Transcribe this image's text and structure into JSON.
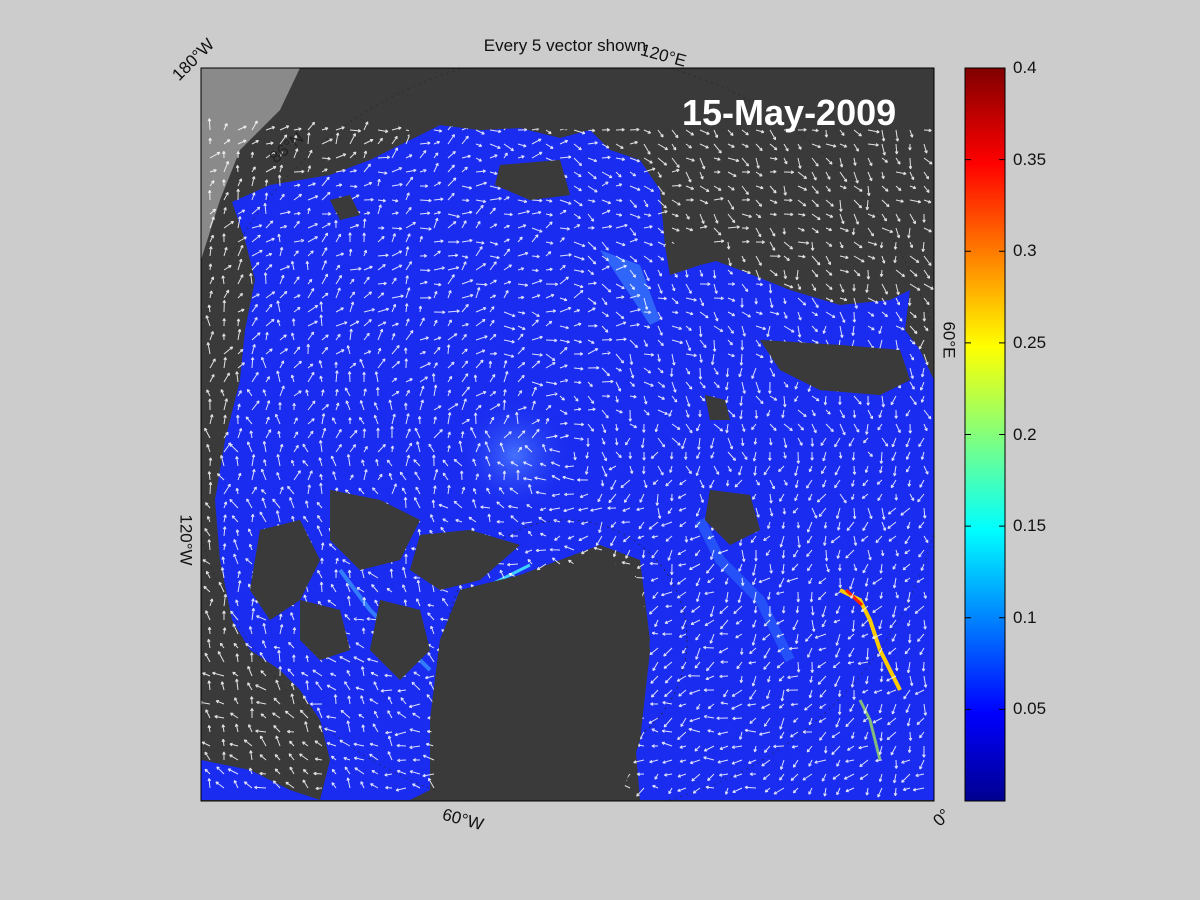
{
  "title": "Every 5 vector shown",
  "date": "15-May-2009",
  "coordinate_labels": {
    "lon_180w": "180°W",
    "lon_120e": "120°E",
    "lon_60e": "60°E",
    "lon_0": "0°",
    "lon_60w": "60°W",
    "lon_120w": "120°W",
    "lat_86n": "86°N"
  },
  "colorbar": {
    "min": 0,
    "max": 0.4,
    "ticks": [
      "0.4",
      "0.35",
      "0.3",
      "0.25",
      "0.2",
      "0.15",
      "0.1",
      "0.05"
    ],
    "tick_values": [
      0.4,
      0.35,
      0.3,
      0.25,
      0.2,
      0.15,
      0.1,
      0.05
    ],
    "colormap": "jet"
  },
  "colors": {
    "background": "#cccccc",
    "land": "#3a3a3a",
    "ocean_default": "#1a2cf0",
    "vectors": "#ffffff"
  },
  "map": {
    "projection": "polar-stereographic",
    "region": "Arctic Ocean",
    "vector_stride": 5
  }
}
